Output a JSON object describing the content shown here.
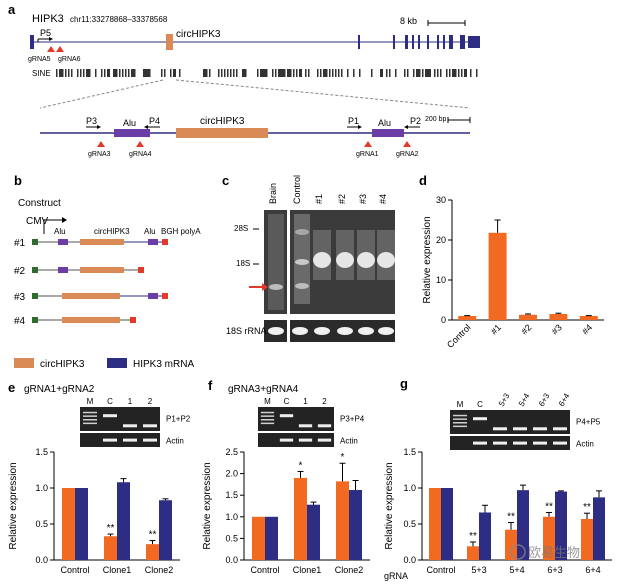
{
  "colors": {
    "circ": "#d98a55",
    "mrna": "#2e2d84",
    "red": "#e23a2a",
    "purple": "#6a3ea6",
    "green": "#2f6b2f",
    "orange_bar": "#f26a21"
  },
  "panel_a": {
    "letter": "a",
    "gene": "HIPK3",
    "coords": "chr11:33278868–33378568",
    "scale": "8 kb",
    "circ_label": "circHIPK3",
    "p5": "P5",
    "grna_left": [
      "gRNA5",
      "gRNA6"
    ],
    "sine": "SINE",
    "zoom_circ": "circHIPK3",
    "alu": "Alu",
    "p3": "P3",
    "p4": "P4",
    "p1": "P1",
    "p2": "P2",
    "scale_bp": "200 bp",
    "grna_zoom": [
      "gRNA3",
      "gRNA4",
      "gRNA1",
      "gRNA2"
    ]
  },
  "panel_b": {
    "letter": "b",
    "title": "Construct",
    "cmv": "CMV",
    "alu": "Alu",
    "circ": "circHIPK3",
    "polya": "BGH polyA",
    "rows": [
      "#1",
      "#2",
      "#3",
      "#4"
    ],
    "legend": [
      "circHIPK3",
      "HIPK3 mRNA"
    ]
  },
  "panel_c": {
    "letter": "c",
    "lanes": [
      "Brain",
      "Control",
      "#1",
      "#2",
      "#3",
      "#4"
    ],
    "markers": [
      "28S",
      "18S"
    ],
    "bottom_label": "18S rRNA"
  },
  "panel_d": {
    "letter": "d",
    "ylabel": "Relative expression"
  },
  "panel_e": {
    "letter": "e",
    "title": "gRNA1+gRNA2",
    "gel_lanes": [
      "M",
      "C",
      "1",
      "2"
    ],
    "gel_labels": [
      "P1+P2",
      "Actin"
    ],
    "ylabel": "Relative expression",
    "sig": [
      "**",
      "**"
    ]
  },
  "panel_f": {
    "letter": "f",
    "title": "gRNA3+gRNA4",
    "gel_lanes": [
      "M",
      "C",
      "1",
      "2"
    ],
    "gel_labels": [
      "P3+P4",
      "Actin"
    ],
    "ylabel": "Relative expression",
    "sig": [
      "*",
      "*"
    ]
  },
  "panel_g": {
    "letter": "g",
    "gel_lanes": [
      "M",
      "C",
      "5+3",
      "5+4",
      "6+3",
      "6+4"
    ],
    "gel_labels": [
      "P4+P5",
      "Actin"
    ],
    "ylabel": "Relative expression",
    "grna_label": "gRNA",
    "sig": [
      "**",
      "**",
      "**",
      "**"
    ]
  },
  "watermark": "欧易生物",
  "chart_data": [
    {
      "panel": "d",
      "type": "bar",
      "categories": [
        "Control",
        "#1",
        "#2",
        "#3",
        "#4"
      ],
      "values": [
        1.0,
        21.8,
        1.3,
        1.5,
        1.0
      ],
      "errors": [
        0.1,
        3.2,
        0.2,
        0.2,
        0.1
      ],
      "ylim": [
        0,
        30
      ],
      "yticks": [
        0,
        10,
        20,
        30
      ],
      "ylabel": "Relative expression",
      "color": "#f26a21"
    },
    {
      "panel": "e",
      "type": "bar",
      "categories": [
        "Control",
        "Clone1",
        "Clone2"
      ],
      "series": [
        {
          "name": "circHIPK3",
          "values": [
            1.0,
            0.33,
            0.22
          ],
          "errors": [
            0,
            0.03,
            0.05
          ]
        },
        {
          "name": "HIPK3 mRNA",
          "values": [
            1.0,
            1.08,
            0.83
          ],
          "errors": [
            0,
            0.05,
            0.02
          ]
        }
      ],
      "ylim": [
        0,
        1.5
      ],
      "yticks": [
        0,
        0.5,
        1.0,
        1.5
      ],
      "ylabel": "Relative expression"
    },
    {
      "panel": "f",
      "type": "bar",
      "categories": [
        "Control",
        "Clone1",
        "Clone2"
      ],
      "series": [
        {
          "name": "circHIPK3",
          "values": [
            1.0,
            1.9,
            1.82
          ],
          "errors": [
            0,
            0.15,
            0.42
          ]
        },
        {
          "name": "HIPK3 mRNA",
          "values": [
            1.0,
            1.28,
            1.62
          ],
          "errors": [
            0,
            0.06,
            0.22
          ]
        }
      ],
      "ylim": [
        0,
        2.5
      ],
      "yticks": [
        0,
        0.5,
        1.0,
        1.5,
        2.0,
        2.5
      ],
      "ylabel": "Relative expression"
    },
    {
      "panel": "g",
      "type": "bar",
      "categories": [
        "Control",
        "5+3",
        "5+4",
        "6+3",
        "6+4"
      ],
      "series": [
        {
          "name": "circHIPK3",
          "values": [
            1.0,
            0.19,
            0.42,
            0.6,
            0.57
          ],
          "errors": [
            0,
            0.06,
            0.1,
            0.06,
            0.08
          ]
        },
        {
          "name": "HIPK3 mRNA",
          "values": [
            1.0,
            0.66,
            0.97,
            0.95,
            0.87
          ],
          "errors": [
            0,
            0.1,
            0.07,
            0.01,
            0.09
          ]
        }
      ],
      "ylim": [
        0,
        1.5
      ],
      "yticks": [
        0,
        0.5,
        1.0,
        1.5
      ],
      "ylabel": "Relative expression"
    }
  ]
}
